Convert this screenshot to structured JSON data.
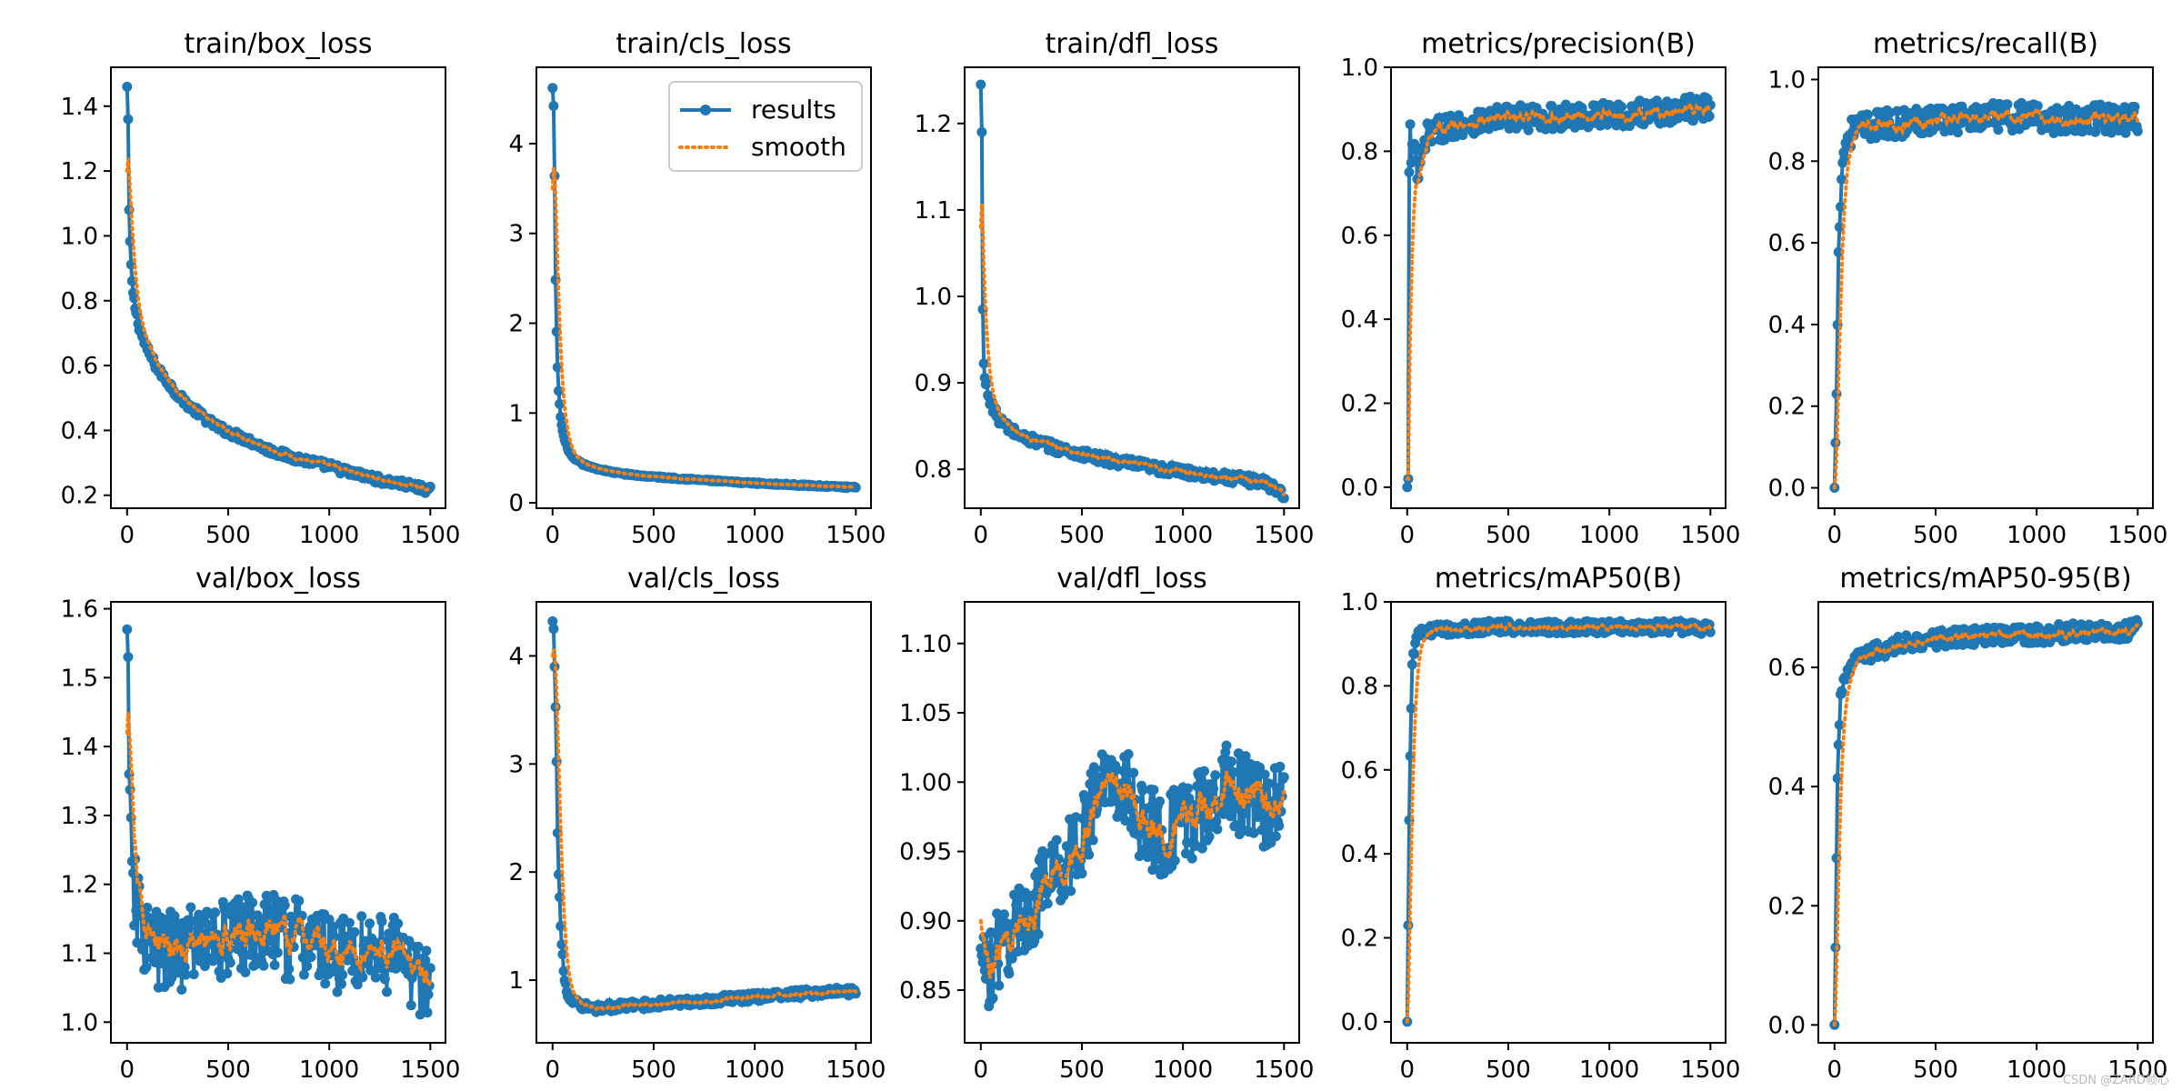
{
  "colors": {
    "results": "#1f77b4",
    "smooth": "#ff7f0e",
    "axis": "#000000"
  },
  "legend": {
    "results_label": "results",
    "smooth_label": "smooth",
    "placement": "upper-right of train/cls_loss"
  },
  "watermark": "CSDN @ZARD帧心",
  "chart_data": [
    {
      "type": "line",
      "title": "train/box_loss",
      "xlim": [
        -80,
        1575
      ],
      "ylim": [
        0.16,
        1.52
      ],
      "xticks": [
        0,
        500,
        1000,
        1500
      ],
      "xtick_labels": [
        "0",
        "500",
        "1000",
        "1500"
      ],
      "yticks": [
        0.2,
        0.4,
        0.6,
        0.8,
        1.0,
        1.2,
        1.4
      ],
      "ytick_labels": [
        "0.2",
        "0.4",
        "0.6",
        "0.8",
        "1.0",
        "1.2",
        "1.4"
      ],
      "series": [
        {
          "name": "results",
          "x": [
            0,
            5,
            10,
            15,
            20,
            30,
            40,
            60,
            80,
            100,
            150,
            200,
            250,
            300,
            350,
            400,
            450,
            500,
            600,
            700,
            800,
            900,
            1000,
            1100,
            1200,
            1300,
            1400,
            1500
          ],
          "y": [
            1.46,
            1.36,
            1.08,
            0.98,
            0.9,
            0.82,
            0.78,
            0.72,
            0.68,
            0.65,
            0.59,
            0.55,
            0.51,
            0.48,
            0.455,
            0.43,
            0.41,
            0.395,
            0.37,
            0.34,
            0.32,
            0.305,
            0.29,
            0.27,
            0.255,
            0.24,
            0.23,
            0.215
          ]
        }
      ],
      "noise": 0.012,
      "smooth_start": 1.2,
      "legend": false
    },
    {
      "type": "line",
      "title": "train/cls_loss",
      "xlim": [
        -80,
        1575
      ],
      "ylim": [
        -0.06,
        4.85
      ],
      "xticks": [
        0,
        500,
        1000,
        1500
      ],
      "xtick_labels": [
        "0",
        "500",
        "1000",
        "1500"
      ],
      "yticks": [
        0,
        1,
        2,
        3,
        4
      ],
      "ytick_labels": [
        "0",
        "1",
        "2",
        "3",
        "4"
      ],
      "series": [
        {
          "name": "results",
          "x": [
            0,
            5,
            10,
            15,
            20,
            25,
            30,
            40,
            50,
            60,
            80,
            100,
            150,
            200,
            300,
            400,
            500,
            700,
            900,
            1100,
            1300,
            1500
          ],
          "y": [
            4.62,
            4.42,
            3.64,
            2.48,
            1.9,
            1.5,
            1.25,
            0.95,
            0.8,
            0.7,
            0.58,
            0.5,
            0.43,
            0.39,
            0.34,
            0.31,
            0.29,
            0.26,
            0.23,
            0.21,
            0.19,
            0.17
          ]
        }
      ],
      "noise": 0.01,
      "smooth_start": 3.5,
      "legend": true
    },
    {
      "type": "line",
      "title": "train/dfl_loss",
      "xlim": [
        -80,
        1575
      ],
      "ylim": [
        0.755,
        1.265
      ],
      "xticks": [
        0,
        500,
        1000,
        1500
      ],
      "xtick_labels": [
        "0",
        "500",
        "1000",
        "1500"
      ],
      "yticks": [
        0.8,
        0.9,
        1.0,
        1.1,
        1.2
      ],
      "ytick_labels": [
        "0.8",
        "0.9",
        "1.0",
        "1.1",
        "1.2"
      ],
      "series": [
        {
          "name": "results",
          "x": [
            0,
            5,
            10,
            15,
            20,
            30,
            40,
            60,
            80,
            100,
            150,
            200,
            300,
            400,
            500,
            600,
            700,
            800,
            900,
            1000,
            1100,
            1200,
            1300,
            1400,
            1500
          ],
          "y": [
            1.245,
            1.19,
            0.985,
            0.92,
            0.905,
            0.895,
            0.885,
            0.87,
            0.862,
            0.855,
            0.845,
            0.838,
            0.83,
            0.823,
            0.817,
            0.812,
            0.808,
            0.804,
            0.8,
            0.797,
            0.794,
            0.791,
            0.788,
            0.785,
            0.772
          ]
        }
      ],
      "noise": 0.006,
      "smooth_start": 1.08,
      "legend": false
    },
    {
      "type": "line",
      "title": "metrics/precision(B)",
      "xlim": [
        -80,
        1575
      ],
      "ylim": [
        -0.05,
        1.0
      ],
      "xticks": [
        0,
        500,
        1000,
        1500
      ],
      "xtick_labels": [
        "0",
        "500",
        "1000",
        "1500"
      ],
      "yticks": [
        0,
        0.2,
        0.4,
        0.6,
        0.8,
        1.0
      ],
      "ytick_labels": [
        "0.0",
        "0.2",
        "0.4",
        "0.6",
        "0.8",
        "1.0"
      ],
      "series": [
        {
          "name": "results",
          "x": [
            0,
            5,
            10,
            15,
            20,
            30,
            50,
            80,
            100,
            150,
            200,
            300,
            400,
            500,
            700,
            900,
            1100,
            1300,
            1500
          ],
          "y": [
            0.0,
            0.02,
            0.75,
            0.85,
            0.78,
            0.82,
            0.74,
            0.8,
            0.84,
            0.85,
            0.86,
            0.87,
            0.875,
            0.88,
            0.88,
            0.885,
            0.89,
            0.895,
            0.905
          ]
        }
      ],
      "noise": 0.03,
      "smooth_start": 0.02,
      "legend": false
    },
    {
      "type": "line",
      "title": "metrics/recall(B)",
      "xlim": [
        -80,
        1575
      ],
      "ylim": [
        -0.05,
        1.03
      ],
      "xticks": [
        0,
        500,
        1000,
        1500
      ],
      "xtick_labels": [
        "0",
        "500",
        "1000",
        "1500"
      ],
      "yticks": [
        0,
        0.2,
        0.4,
        0.6,
        0.8,
        1.0
      ],
      "ytick_labels": [
        "0.0",
        "0.2",
        "0.4",
        "0.6",
        "0.8",
        "1.0"
      ],
      "series": [
        {
          "name": "results",
          "x": [
            0,
            5,
            10,
            15,
            20,
            30,
            40,
            60,
            80,
            100,
            150,
            200,
            300,
            400,
            500,
            700,
            900,
            1100,
            1300,
            1500
          ],
          "y": [
            0.0,
            0.11,
            0.23,
            0.38,
            0.6,
            0.72,
            0.8,
            0.85,
            0.87,
            0.88,
            0.88,
            0.89,
            0.89,
            0.9,
            0.905,
            0.905,
            0.91,
            0.9,
            0.905,
            0.9
          ]
        }
      ],
      "noise": 0.035,
      "smooth_start": 0.0,
      "legend": false
    },
    {
      "type": "line",
      "title": "val/box_loss",
      "xlim": [
        -80,
        1575
      ],
      "ylim": [
        0.97,
        1.61
      ],
      "xticks": [
        0,
        500,
        1000,
        1500
      ],
      "xtick_labels": [
        "0",
        "500",
        "1000",
        "1500"
      ],
      "yticks": [
        1.0,
        1.1,
        1.2,
        1.3,
        1.4,
        1.5,
        1.6
      ],
      "ytick_labels": [
        "1.0",
        "1.1",
        "1.2",
        "1.3",
        "1.4",
        "1.5",
        "1.6"
      ],
      "series": [
        {
          "name": "results",
          "x": [
            0,
            5,
            10,
            15,
            20,
            30,
            50,
            80,
            100,
            150,
            200,
            300,
            400,
            500,
            600,
            700,
            800,
            900,
            1000,
            1100,
            1200,
            1300,
            1400,
            1500
          ],
          "y": [
            1.57,
            1.53,
            1.36,
            1.3,
            1.24,
            1.2,
            1.16,
            1.13,
            1.12,
            1.1,
            1.1,
            1.11,
            1.12,
            1.12,
            1.13,
            1.13,
            1.12,
            1.12,
            1.1,
            1.1,
            1.11,
            1.1,
            1.08,
            1.06
          ]
        }
      ],
      "noise": 0.06,
      "smooth_start": 1.42,
      "legend": false
    },
    {
      "type": "line",
      "title": "val/cls_loss",
      "xlim": [
        -80,
        1575
      ],
      "ylim": [
        0.42,
        4.5
      ],
      "xticks": [
        0,
        500,
        1000,
        1500
      ],
      "xtick_labels": [
        "0",
        "500",
        "1000",
        "1500"
      ],
      "yticks": [
        1,
        2,
        3,
        4
      ],
      "ytick_labels": [
        "1",
        "2",
        "3",
        "4"
      ],
      "series": [
        {
          "name": "results",
          "x": [
            0,
            5,
            10,
            15,
            20,
            25,
            30,
            40,
            50,
            60,
            80,
            100,
            150,
            200,
            300,
            500,
            700,
            900,
            1100,
            1300,
            1500
          ],
          "y": [
            4.32,
            4.25,
            3.9,
            3.5,
            3.0,
            2.4,
            2.0,
            1.5,
            1.2,
            1.0,
            0.85,
            0.8,
            0.76,
            0.74,
            0.75,
            0.78,
            0.8,
            0.83,
            0.86,
            0.88,
            0.9
          ]
        }
      ],
      "noise": 0.04,
      "smooth_start": 4.0,
      "legend": false
    },
    {
      "type": "line",
      "title": "val/dfl_loss",
      "xlim": [
        -80,
        1575
      ],
      "ylim": [
        0.812,
        1.13
      ],
      "xticks": [
        0,
        500,
        1000,
        1500
      ],
      "xtick_labels": [
        "0",
        "500",
        "1000",
        "1500"
      ],
      "yticks": [
        0.85,
        0.9,
        0.95,
        1.0,
        1.05,
        1.1
      ],
      "ytick_labels": [
        "0.85",
        "0.90",
        "0.95",
        "1.00",
        "1.05",
        "1.10"
      ],
      "series": [
        {
          "name": "results",
          "x": [
            0,
            20,
            50,
            100,
            150,
            200,
            300,
            400,
            500,
            600,
            700,
            800,
            900,
            1000,
            1100,
            1200,
            1300,
            1400,
            1500
          ],
          "y": [
            0.88,
            0.86,
            0.87,
            0.88,
            0.89,
            0.9,
            0.92,
            0.94,
            0.96,
            1.0,
            1.0,
            0.97,
            0.96,
            0.97,
            0.98,
            1.0,
            0.99,
            0.98,
            0.99
          ]
        }
      ],
      "noise": 0.03,
      "smooth_start": 0.9,
      "legend": false
    },
    {
      "type": "line",
      "title": "metrics/mAP50(B)",
      "xlim": [
        -80,
        1575
      ],
      "ylim": [
        -0.05,
        1.0
      ],
      "xticks": [
        0,
        500,
        1000,
        1500
      ],
      "xtick_labels": [
        "0",
        "500",
        "1000",
        "1500"
      ],
      "yticks": [
        0,
        0.2,
        0.4,
        0.6,
        0.8,
        1.0
      ],
      "ytick_labels": [
        "0.0",
        "0.2",
        "0.4",
        "0.6",
        "0.8",
        "1.0"
      ],
      "series": [
        {
          "name": "results",
          "x": [
            0,
            5,
            10,
            15,
            20,
            25,
            30,
            40,
            60,
            80,
            100,
            200,
            300,
            400,
            600,
            800,
            1000,
            1200,
            1400,
            1500
          ],
          "y": [
            0.0,
            0.23,
            0.48,
            0.62,
            0.75,
            0.84,
            0.88,
            0.9,
            0.92,
            0.925,
            0.93,
            0.935,
            0.935,
            0.94,
            0.94,
            0.94,
            0.94,
            0.94,
            0.94,
            0.935
          ]
        }
      ],
      "noise": 0.015,
      "smooth_start": 0.0,
      "legend": false
    },
    {
      "type": "line",
      "title": "metrics/mAP50-95(B)",
      "xlim": [
        -80,
        1575
      ],
      "ylim": [
        -0.03,
        0.71
      ],
      "xticks": [
        0,
        500,
        1000,
        1500
      ],
      "xtick_labels": [
        "0",
        "500",
        "1000",
        "1500"
      ],
      "yticks": [
        0,
        0.2,
        0.4,
        0.6
      ],
      "ytick_labels": [
        "0.0",
        "0.2",
        "0.4",
        "0.6"
      ],
      "series": [
        {
          "name": "results",
          "x": [
            0,
            5,
            10,
            15,
            20,
            30,
            40,
            60,
            80,
            100,
            200,
            300,
            400,
            600,
            800,
            1000,
            1200,
            1400,
            1500
          ],
          "y": [
            0.0,
            0.13,
            0.28,
            0.4,
            0.48,
            0.54,
            0.57,
            0.59,
            0.6,
            0.61,
            0.625,
            0.635,
            0.645,
            0.65,
            0.655,
            0.655,
            0.66,
            0.66,
            0.665
          ]
        }
      ],
      "noise": 0.015,
      "smooth_start": 0.0,
      "legend": false
    }
  ]
}
